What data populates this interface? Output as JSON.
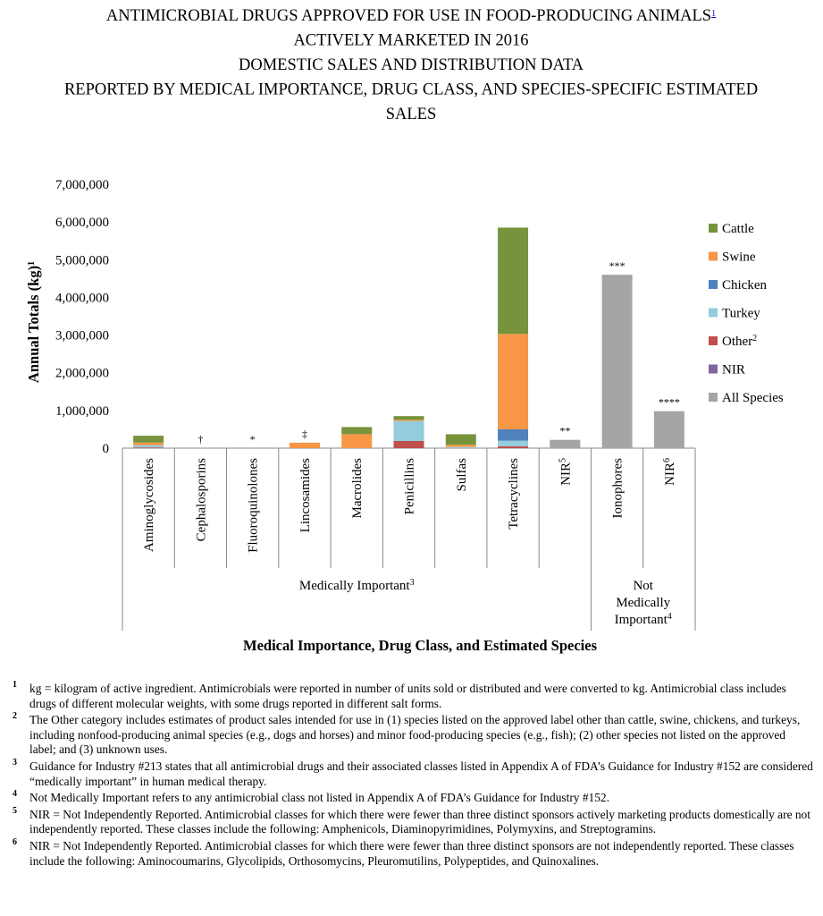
{
  "chart_data": {
    "type": "bar",
    "stacked": true,
    "title_lines": [
      "ANTIMICROBIAL DRUGS APPROVED FOR USE IN FOOD-PRODUCING ANIMALS",
      "ACTIVELY MARKETED IN 2016",
      "DOMESTIC SALES AND DISTRIBUTION DATA",
      "REPORTED BY MEDICAL IMPORTANCE, DRUG CLASS, AND SPECIES-SPECIFIC ESTIMATED",
      "SALES"
    ],
    "title_note": "1",
    "y_label": "Annual Totals (kg)",
    "y_label_note": "1",
    "x_label": "Medical Importance, Drug Class, and Estimated Species",
    "categories": [
      "Aminoglycosides",
      "Cephalosporins",
      "Fluoroquinolones",
      "Lincosamides",
      "Macrolides",
      "Penicillins",
      "Sulfas",
      "Tetracyclines",
      "NIR",
      "Ionophores",
      "NIR"
    ],
    "category_notes": [
      null,
      null,
      null,
      null,
      null,
      null,
      null,
      null,
      "5",
      null,
      "6"
    ],
    "bar_annotations": [
      null,
      "†",
      "*",
      "‡",
      null,
      null,
      null,
      null,
      "**",
      "***",
      "****"
    ],
    "groups": [
      {
        "label": "Medically Important",
        "note": "3",
        "count": 9
      },
      {
        "label_lines": [
          "Not",
          "Medically",
          "Important"
        ],
        "note": "4",
        "count": 2
      }
    ],
    "series": [
      {
        "name": "Cattle",
        "color": "#77933c",
        "values": [
          180000,
          null,
          null,
          null,
          190000,
          100000,
          280000,
          2820000,
          null,
          null,
          null
        ]
      },
      {
        "name": "Swine",
        "color": "#f79646",
        "values": [
          70000,
          null,
          null,
          145000,
          370000,
          30000,
          60000,
          2530000,
          null,
          null,
          null
        ]
      },
      {
        "name": "Chicken",
        "color": "#4f81bd",
        "values": [
          null,
          null,
          null,
          null,
          null,
          null,
          null,
          300000,
          null,
          null,
          null
        ]
      },
      {
        "name": "Turkey",
        "color": "#93cddd",
        "values": [
          60000,
          null,
          null,
          null,
          null,
          530000,
          30000,
          150000,
          null,
          null,
          null
        ]
      },
      {
        "name": "Other",
        "note": "2",
        "color": "#c0504d",
        "values": [
          20000,
          null,
          null,
          null,
          null,
          190000,
          null,
          50000,
          null,
          null,
          null
        ]
      },
      {
        "name": "NIR",
        "color": "#8064a2",
        "values": [
          null,
          null,
          null,
          null,
          null,
          null,
          null,
          null,
          null,
          null,
          null
        ]
      },
      {
        "name": "All Species",
        "color": "#a5a5a5",
        "values": [
          null,
          null,
          null,
          null,
          null,
          null,
          null,
          null,
          220000,
          4600000,
          980000
        ]
      }
    ],
    "ylim": [
      0,
      7000000
    ],
    "yticks": [
      0,
      {
        "value": 1000000,
        "label": "1,000,000"
      },
      {
        "value": 2000000,
        "label": "2,000,000"
      },
      {
        "value": 3000000,
        "label": "3,000,000"
      },
      {
        "value": 4000000,
        "label": "4,000,000"
      },
      {
        "value": 5000000,
        "label": "5,000,000"
      },
      {
        "value": 6000000,
        "label": "6,000,000"
      },
      {
        "value": 7000000,
        "label": "7,000,000"
      }
    ],
    "grid": false,
    "legend_position": "right",
    "footnotes": [
      {
        "mark": "1",
        "text": "kg = kilogram of active ingredient. Antimicrobials were reported in number of units sold or distributed and were converted to kg. Antimicrobial class includes drugs of different molecular weights, with some drugs reported in different salt forms."
      },
      {
        "mark": "2",
        "text": "The Other category includes estimates of product sales intended for use in (1) species listed on the approved label other than cattle, swine, chickens, and turkeys, including nonfood-producing animal species (e.g., dogs and horses) and minor food-producing species (e.g., fish); (2) other species not listed on the approved label; and (3) unknown uses."
      },
      {
        "mark": "3",
        "text": "Guidance for Industry #213 states that all antimicrobial drugs and their associated classes listed in Appendix A of FDA’s Guidance for Industry #152 are considered “medically important” in human medical therapy."
      },
      {
        "mark": "4",
        "text": "Not Medically Important refers to any antimicrobial class not listed in Appendix A of FDA’s Guidance for Industry #152."
      },
      {
        "mark": "5",
        "text": "NIR = Not Independently Reported. Antimicrobial classes for which there were fewer than three distinct sponsors actively marketing products domestically are not independently reported. These classes include the following: Amphenicols, Diaminopyrimidines, Polymyxins, and Streptogramins."
      },
      {
        "mark": "6",
        "text": "NIR = Not Independently Reported. Antimicrobial classes for which there were fewer than three distinct sponsors are not independently reported. These classes include the following: Aminocoumarins, Glycolipids, Orthosomycins, Pleuromutilins, Polypeptides, and Quinoxalines."
      }
    ]
  }
}
